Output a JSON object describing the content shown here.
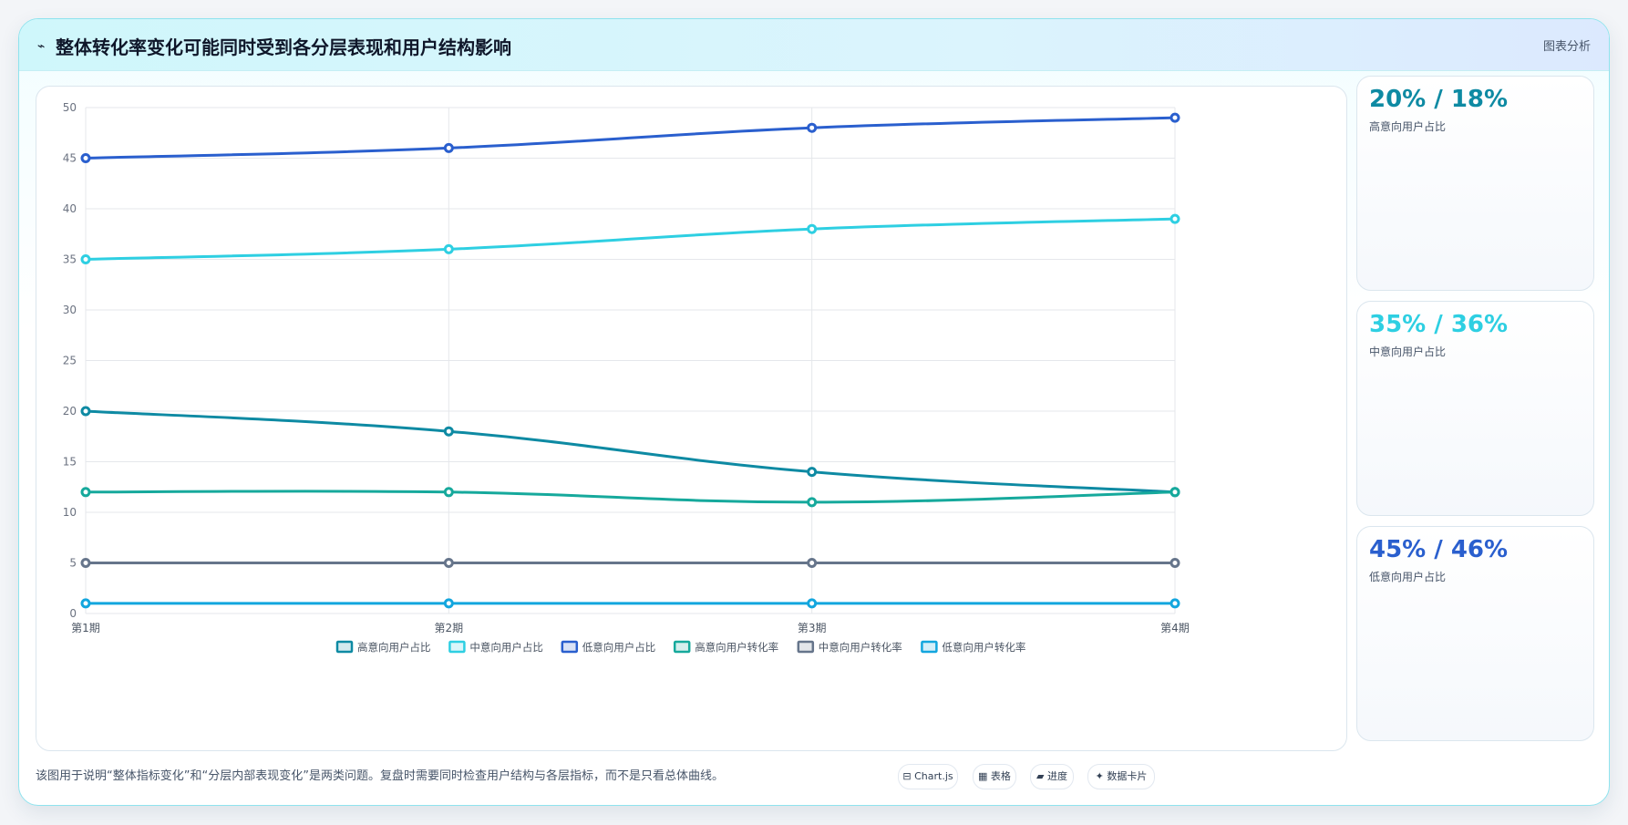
{
  "header": {
    "icon": "⌁",
    "title": "整体转化率变化可能同时受到各分层表现和用户结构影响",
    "tag": "图表分析"
  },
  "chart_data": {
    "type": "line",
    "categories": [
      "第1期",
      "第2期",
      "第3期",
      "第4期"
    ],
    "ylim": [
      0,
      50
    ],
    "yticks": [
      0,
      5,
      10,
      15,
      20,
      25,
      30,
      35,
      40,
      45,
      50
    ],
    "grid": true,
    "legend_position": "bottom-center",
    "series": [
      {
        "name": "高意向用户占比",
        "values": [
          20,
          18,
          14,
          12
        ],
        "color": "#0e8aa3"
      },
      {
        "name": "中意向用户占比",
        "values": [
          35,
          36,
          38,
          39
        ],
        "color": "#2ecfe2"
      },
      {
        "name": "低意向用户占比",
        "values": [
          45,
          46,
          48,
          49
        ],
        "color": "#2a5fce"
      },
      {
        "name": "高意向用户转化率",
        "values": [
          12,
          12,
          11,
          12
        ],
        "color": "#16a99c"
      },
      {
        "name": "中意向用户转化率",
        "values": [
          5,
          5,
          5,
          5
        ],
        "color": "#66758b"
      },
      {
        "name": "低意向用户转化率",
        "values": [
          1,
          1,
          1,
          1
        ],
        "color": "#13a6de"
      }
    ]
  },
  "stats": [
    {
      "value": "20% / 18%",
      "label": "高意向用户占比",
      "color": "#0e8aa3"
    },
    {
      "value": "35% / 36%",
      "label": "中意向用户占比",
      "color": "#2ecfe2"
    },
    {
      "value": "45% / 46%",
      "label": "低意向用户占比",
      "color": "#2a5fce"
    }
  ],
  "footer": {
    "note": "该图用于说明“整体指标变化”和“分层内部表现变化”是两类问题。复盘时需要同时检查用户结构与各层指标，而不是只看总体曲线。",
    "pills": [
      "⊟ Chart.js",
      "▦ 表格",
      "▰ 进度",
      "✦ 数据卡片"
    ]
  }
}
